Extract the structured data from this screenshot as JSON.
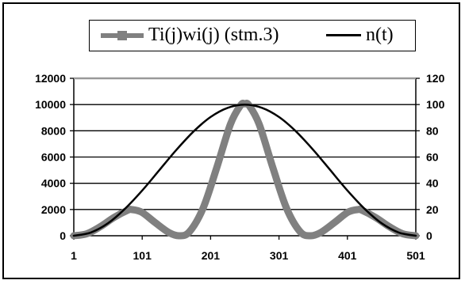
{
  "chart_data": {
    "type": "line",
    "title": "",
    "xlabel": "",
    "ylabel": "",
    "x_ticks": [
      1,
      101,
      201,
      301,
      401,
      501
    ],
    "xlim": [
      1,
      501
    ],
    "y_left_lim": [
      0,
      12000
    ],
    "y_left_ticks": [
      "0",
      "2000",
      "4000",
      "6000",
      "8000",
      "10000",
      "12000"
    ],
    "y_right_lim": [
      0,
      120
    ],
    "y_right_ticks": [
      "0",
      "20",
      "40",
      "60",
      "80",
      "100",
      "120"
    ],
    "grid": true,
    "legend_position": "top",
    "series": [
      {
        "name": "Ti(j)wi(j) (stm.3)",
        "axis": "left",
        "color": "#808080",
        "marker": "square",
        "x": [
          1,
          20,
          40,
          60,
          80,
          85,
          100,
          120,
          140,
          155,
          170,
          190,
          210,
          230,
          245,
          251,
          257,
          272,
          292,
          312,
          332,
          347,
          362,
          382,
          402,
          417,
          422,
          442,
          462,
          482,
          501
        ],
        "y": [
          0,
          150,
          700,
          1400,
          1950,
          2000,
          1800,
          1000,
          250,
          0,
          300,
          2100,
          5200,
          8500,
          9950,
          10050,
          9950,
          8500,
          5200,
          2100,
          300,
          0,
          250,
          1000,
          1800,
          2000,
          1950,
          1400,
          700,
          150,
          0
        ]
      },
      {
        "name": "n(t)",
        "axis": "right",
        "color": "#000000",
        "marker": "none",
        "x": [
          1,
          26,
          51,
          76,
          101,
          126,
          151,
          176,
          201,
          226,
          251,
          276,
          301,
          326,
          351,
          376,
          401,
          426,
          451,
          476,
          501
        ],
        "y": [
          0,
          2.5,
          9.5,
          20.6,
          34.5,
          50,
          65.5,
          79.4,
          90.5,
          97.5,
          100,
          97.5,
          90.5,
          79.4,
          65.5,
          50,
          34.5,
          20.6,
          9.5,
          2.5,
          0
        ]
      }
    ]
  }
}
